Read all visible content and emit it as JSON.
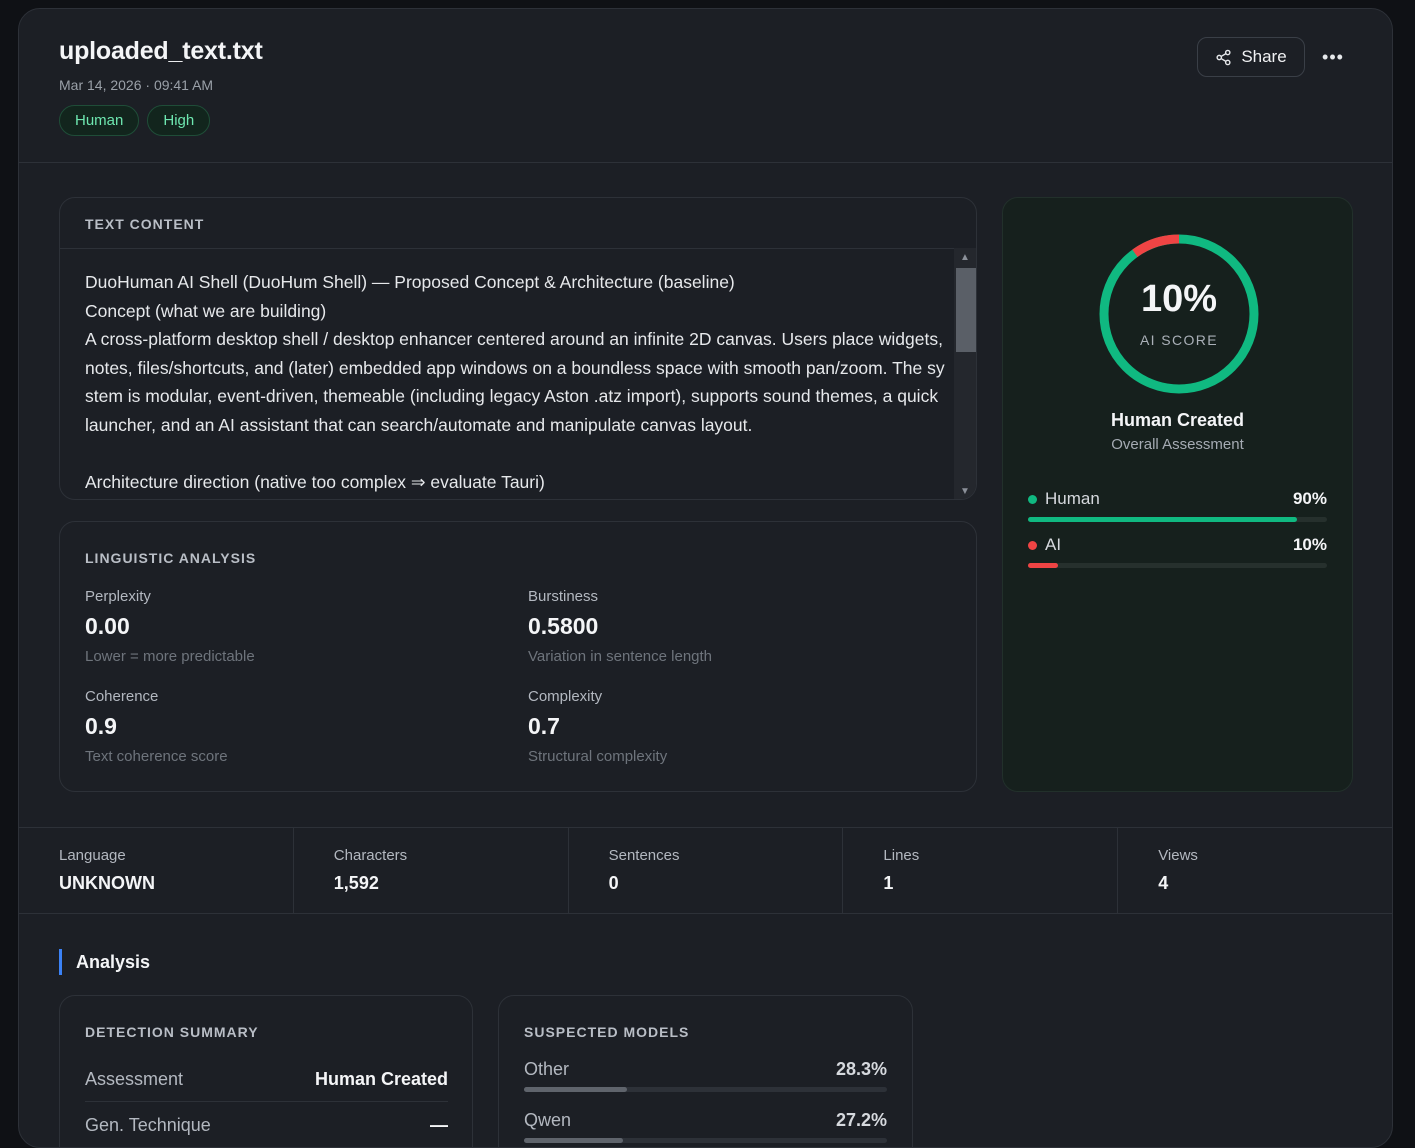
{
  "header": {
    "title": "uploaded_text.txt",
    "timestamp": "Mar 14, 2026 · 09:41 AM",
    "tags": [
      "Human",
      "High"
    ],
    "share_label": "Share",
    "more_icon": "more-horizontal-icon"
  },
  "text_content": {
    "label": "TEXT CONTENT",
    "body": "DuoHuman AI Shell (DuoHum Shell) — Proposed Concept & Architecture (baseline)\nConcept (what we are building)\nA cross-platform desktop shell / desktop enhancer centered around an infinite 2D canvas. Users place widgets, notes, files/shortcuts, and (later) embedded app windows on a boundless space with smooth pan/zoom. The system is modular, event-driven, themeable (including legacy Aston .atz import), supports sound themes, a quick launcher, and an AI assistant that can search/automate and manipulate canvas layout.\n\nArchitecture direction (native too complex ⇒ evaluate Tauri)"
  },
  "score": {
    "ai_percent": 10,
    "percent_label": "10%",
    "gauge_label": "AI SCORE",
    "verdict": "Human Created",
    "verdict_sub": "Overall Assessment",
    "human_color": "#10b981",
    "ai_color": "#ef4444",
    "bars": [
      {
        "name": "Human",
        "pct_label": "90%",
        "value": 0.9,
        "color": "#10b981"
      },
      {
        "name": "AI",
        "pct_label": "10%",
        "value": 0.1,
        "color": "#ef4444"
      }
    ]
  },
  "linguistic": {
    "label": "LINGUISTIC ANALYSIS",
    "metrics": [
      {
        "name": "Perplexity",
        "value": "0.00",
        "desc": "Lower = more predictable"
      },
      {
        "name": "Burstiness",
        "value": "0.5800",
        "desc": "Variation in sentence length"
      },
      {
        "name": "Coherence",
        "value": "0.9",
        "desc": "Text coherence score"
      },
      {
        "name": "Complexity",
        "value": "0.7",
        "desc": "Structural complexity"
      }
    ]
  },
  "stats": [
    {
      "label": "Language",
      "value": "UNKNOWN"
    },
    {
      "label": "Characters",
      "value": "1,592"
    },
    {
      "label": "Sentences",
      "value": "0"
    },
    {
      "label": "Lines",
      "value": "1"
    },
    {
      "label": "Views",
      "value": "4"
    }
  ],
  "analysis": {
    "title": "Analysis",
    "summary": {
      "label": "DETECTION SUMMARY",
      "rows": [
        {
          "key": "Assessment",
          "value": "Human Created"
        },
        {
          "key": "Gen. Technique",
          "value": "—"
        }
      ]
    },
    "models": {
      "label": "SUSPECTED MODELS",
      "items": [
        {
          "name": "Other",
          "pct_label": "28.3%",
          "value": 0.283
        },
        {
          "name": "Qwen",
          "pct_label": "27.2%",
          "value": 0.272
        }
      ]
    }
  }
}
